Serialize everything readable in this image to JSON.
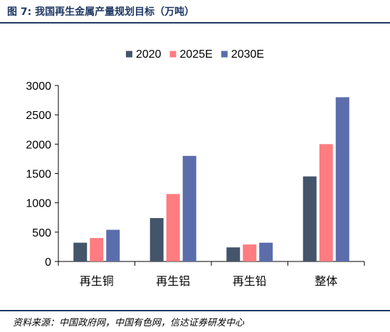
{
  "figure_title": "图 7: 我国再生金属产量规划目标（万吨）",
  "source_note": "资料来源：中国政府网，中国有色网，信达证券研发中心",
  "chart_data": {
    "type": "bar",
    "title": "",
    "xlabel": "",
    "ylabel": "",
    "categories": [
      "再生铜",
      "再生铝",
      "再生铅",
      "整体"
    ],
    "series": [
      {
        "name": "2020",
        "color": "#44546a",
        "values": [
          320,
          740,
          240,
          1450
        ]
      },
      {
        "name": "2025E",
        "color": "#ff7c80",
        "values": [
          400,
          1150,
          290,
          2000
        ]
      },
      {
        "name": "2030E",
        "color": "#5b6eab",
        "values": [
          540,
          1800,
          320,
          2800
        ]
      }
    ],
    "ylim": [
      0,
      3000
    ],
    "yticks": [
      "0",
      "500",
      "1000",
      "1500",
      "2000",
      "2500",
      "3000"
    ],
    "legend_position": "top",
    "grid": false
  }
}
